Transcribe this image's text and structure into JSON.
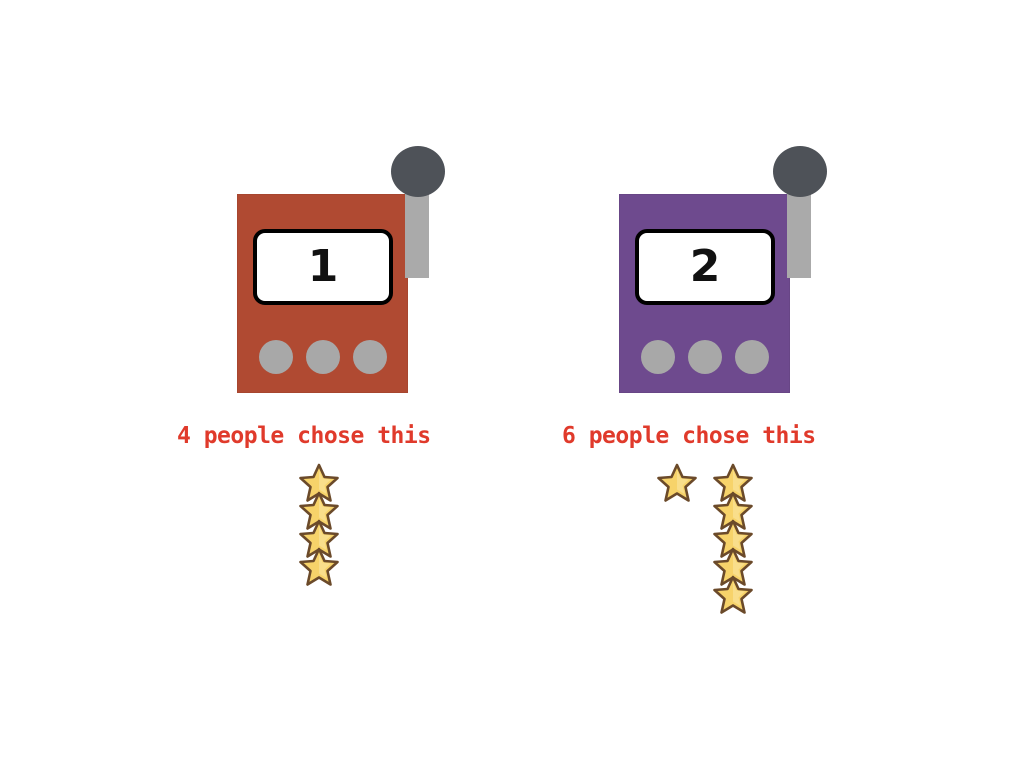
{
  "machines": [
    {
      "number": "1",
      "body_color": "#b04a32",
      "caption": "4 people chose this",
      "choice_count": 4,
      "lever_icon": "lever-icon",
      "buttons": 3
    },
    {
      "number": "2",
      "body_color": "#6e4a8e",
      "caption": "6 people chose this",
      "choice_count": 6,
      "lever_icon": "lever-icon",
      "buttons": 3
    }
  ],
  "colors": {
    "caption": "#e03a2b",
    "star_fill": "#f7d36a",
    "star_outline": "#6b4a2a",
    "lever_knob": "#4e5258",
    "lever_arm": "#aaaaaa",
    "button": "#a8a8a8"
  },
  "icons": {
    "star": "star-icon"
  }
}
